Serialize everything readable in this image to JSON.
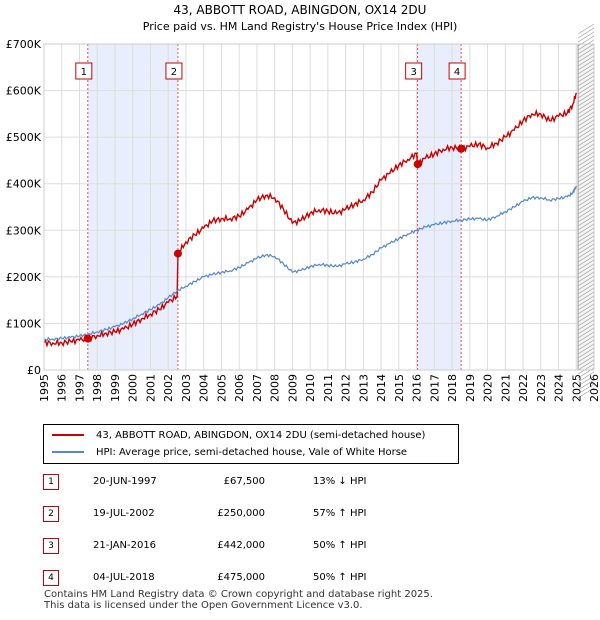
{
  "chart_data": {
    "type": "line",
    "title": "43, ABBOTT ROAD, ABINGDON, OX14 2DU",
    "subtitle": "Price paid vs. HM Land Registry's House Price Index (HPI)",
    "xlabel": "",
    "ylabel": "",
    "xlim": [
      1995,
      2026
    ],
    "ylim": [
      0,
      700000
    ],
    "y_ticks": [
      0,
      100000,
      200000,
      300000,
      400000,
      500000,
      600000,
      700000
    ],
    "y_tick_labels": [
      "£0",
      "£100K",
      "£200K",
      "£300K",
      "£400K",
      "£500K",
      "£600K",
      "£700K"
    ],
    "x_ticks": [
      1995,
      1996,
      1997,
      1998,
      1999,
      2000,
      2001,
      2002,
      2003,
      2004,
      2005,
      2006,
      2007,
      2008,
      2009,
      2010,
      2011,
      2012,
      2013,
      2014,
      2015,
      2016,
      2017,
      2018,
      2019,
      2020,
      2021,
      2022,
      2023,
      2024,
      2025,
      2026
    ],
    "x_tick_labels": [
      "1995",
      "1996",
      "1997",
      "1998",
      "1999",
      "2000",
      "2001",
      "2002",
      "2003",
      "2004",
      "2005",
      "2006",
      "2007",
      "2008",
      "2009",
      "2010",
      "2011",
      "2012",
      "2013",
      "2014",
      "2015",
      "2016",
      "2017",
      "2018",
      "2019",
      "2020",
      "2021",
      "2022",
      "2023",
      "2024",
      "2025",
      "2026"
    ],
    "grid": true,
    "forecast_start": 2025.1,
    "shaded_periods": [
      [
        1997.47,
        2002.55
      ],
      [
        2016.06,
        2018.51
      ]
    ],
    "series": [
      {
        "name": "43, ABBOTT ROAD, ABINGDON, OX14 2DU (semi-detached house)",
        "color": "#cc0000",
        "x": [
          1995.0,
          1995.5,
          1996.0,
          1996.5,
          1997.0,
          1997.47,
          1998.0,
          1998.5,
          1999.0,
          1999.5,
          2000.0,
          2000.5,
          2001.0,
          2001.5,
          2002.0,
          2002.5,
          2002.55,
          2003.0,
          2003.5,
          2004.0,
          2004.5,
          2005.0,
          2005.5,
          2006.0,
          2006.5,
          2007.0,
          2007.5,
          2008.0,
          2008.5,
          2009.0,
          2009.5,
          2010.0,
          2010.5,
          2011.0,
          2011.5,
          2012.0,
          2012.5,
          2013.0,
          2013.5,
          2014.0,
          2014.5,
          2015.0,
          2015.5,
          2016.0,
          2016.06,
          2016.5,
          2017.0,
          2017.5,
          2018.0,
          2018.51,
          2019.0,
          2019.5,
          2020.0,
          2020.5,
          2021.0,
          2021.5,
          2022.0,
          2022.5,
          2023.0,
          2023.5,
          2024.0,
          2024.5,
          2024.8,
          2025.0
        ],
        "values": [
          59000,
          58000,
          58500,
          61000,
          64000,
          67500,
          74000,
          79000,
          82000,
          88000,
          98000,
          110000,
          120000,
          130000,
          145000,
          158000,
          250000,
          275000,
          290000,
          305000,
          320000,
          325000,
          325000,
          330000,
          345000,
          365000,
          375000,
          370000,
          345000,
          315000,
          322000,
          337000,
          344000,
          341000,
          336000,
          345000,
          356000,
          365000,
          382000,
          408000,
          423000,
          440000,
          452000,
          465000,
          442000,
          455000,
          464000,
          474000,
          478000,
          475000,
          480000,
          485000,
          477000,
          487000,
          500000,
          515000,
          535000,
          550000,
          550000,
          535000,
          545000,
          552000,
          570000,
          595000
        ]
      },
      {
        "name": "HPI: Average price, semi-detached house, Vale of White Horse",
        "color": "#5588cc",
        "x": [
          1995.0,
          1995.5,
          1996.0,
          1996.5,
          1997.0,
          1997.5,
          1998.0,
          1998.5,
          1999.0,
          1999.5,
          2000.0,
          2000.5,
          2001.0,
          2001.5,
          2002.0,
          2002.5,
          2003.0,
          2003.5,
          2004.0,
          2004.5,
          2005.0,
          2005.5,
          2006.0,
          2006.5,
          2007.0,
          2007.5,
          2008.0,
          2008.5,
          2009.0,
          2009.5,
          2010.0,
          2010.5,
          2011.0,
          2011.5,
          2012.0,
          2012.5,
          2013.0,
          2013.5,
          2014.0,
          2014.5,
          2015.0,
          2015.5,
          2016.0,
          2016.5,
          2017.0,
          2017.5,
          2018.0,
          2018.5,
          2019.0,
          2019.5,
          2020.0,
          2020.5,
          2021.0,
          2021.5,
          2022.0,
          2022.5,
          2023.0,
          2023.5,
          2024.0,
          2024.5,
          2024.8,
          2025.0
        ],
        "values": [
          66000,
          66500,
          68000,
          70000,
          73000,
          77000,
          82000,
          87000,
          93000,
          100000,
          110000,
          120000,
          130000,
          140000,
          155000,
          170000,
          180000,
          190000,
          200000,
          205000,
          210000,
          213000,
          220000,
          230000,
          240000,
          247000,
          244000,
          228000,
          210000,
          214000,
          222000,
          227000,
          225000,
          222000,
          228000,
          232000,
          238000,
          248000,
          262000,
          272000,
          282000,
          292000,
          300000,
          307000,
          312000,
          316000,
          320000,
          322000,
          324000,
          325000,
          322000,
          330000,
          340000,
          350000,
          362000,
          370000,
          370000,
          365000,
          368000,
          372000,
          380000,
          395000
        ]
      }
    ],
    "sales": [
      {
        "num": "1",
        "date": "20-JUN-1997",
        "x": 1997.47,
        "price": "£67,500",
        "value": 67500,
        "hpi": "13% ↓ HPI"
      },
      {
        "num": "2",
        "date": "19-JUL-2002",
        "x": 2002.55,
        "price": "£250,000",
        "value": 250000,
        "hpi": "57% ↑ HPI"
      },
      {
        "num": "3",
        "date": "21-JAN-2016",
        "x": 2016.06,
        "price": "£442,000",
        "value": 442000,
        "hpi": "50% ↑ HPI"
      },
      {
        "num": "4",
        "date": "04-JUL-2018",
        "x": 2018.51,
        "price": "£475,000",
        "value": 475000,
        "hpi": "50% ↑ HPI"
      }
    ]
  },
  "legend": {
    "property_label": "43, ABBOTT ROAD, ABINGDON, OX14 2DU (semi-detached house)",
    "hpi_label": "HPI: Average price, semi-detached house, Vale of White Horse"
  },
  "colors": {
    "property": "#cc0000",
    "hpi": "#5588cc",
    "shade": "#e8eefb",
    "grid": "#dddddd",
    "marker_border": "#cc0000"
  },
  "footer": {
    "line1": "Contains HM Land Registry data © Crown copyright and database right 2025.",
    "line2": "This data is licensed under the Open Government Licence v3.0."
  }
}
